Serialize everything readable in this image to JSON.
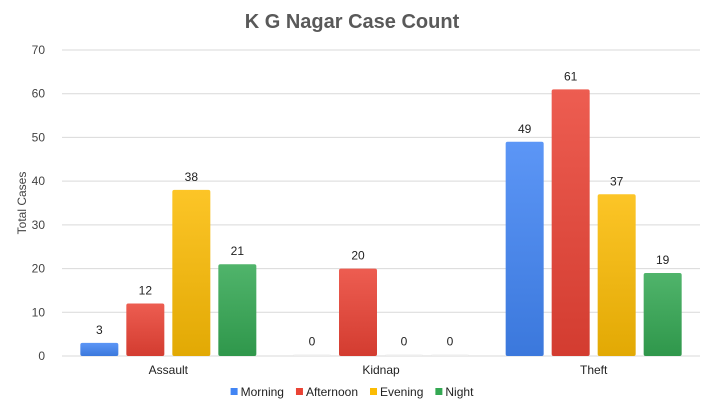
{
  "chart_data": {
    "type": "bar",
    "title": "K G Nagar Case Count",
    "xlabel": "",
    "ylabel": "Total Cases",
    "ylim": [
      0,
      70
    ],
    "yticks": [
      0,
      10,
      20,
      30,
      40,
      50,
      60,
      70
    ],
    "grid": true,
    "legend_position": "bottom",
    "categories": [
      "Assault",
      "Kidnap",
      "Theft"
    ],
    "series": [
      {
        "name": "Morning",
        "color": "#4285f4",
        "values": [
          3,
          0,
          49
        ]
      },
      {
        "name": "Afternoon",
        "color": "#ea4335",
        "values": [
          12,
          20,
          61
        ]
      },
      {
        "name": "Evening",
        "color": "#fbbc04",
        "values": [
          38,
          0,
          37
        ]
      },
      {
        "name": "Night",
        "color": "#34a853",
        "values": [
          21,
          0,
          19
        ]
      }
    ]
  }
}
